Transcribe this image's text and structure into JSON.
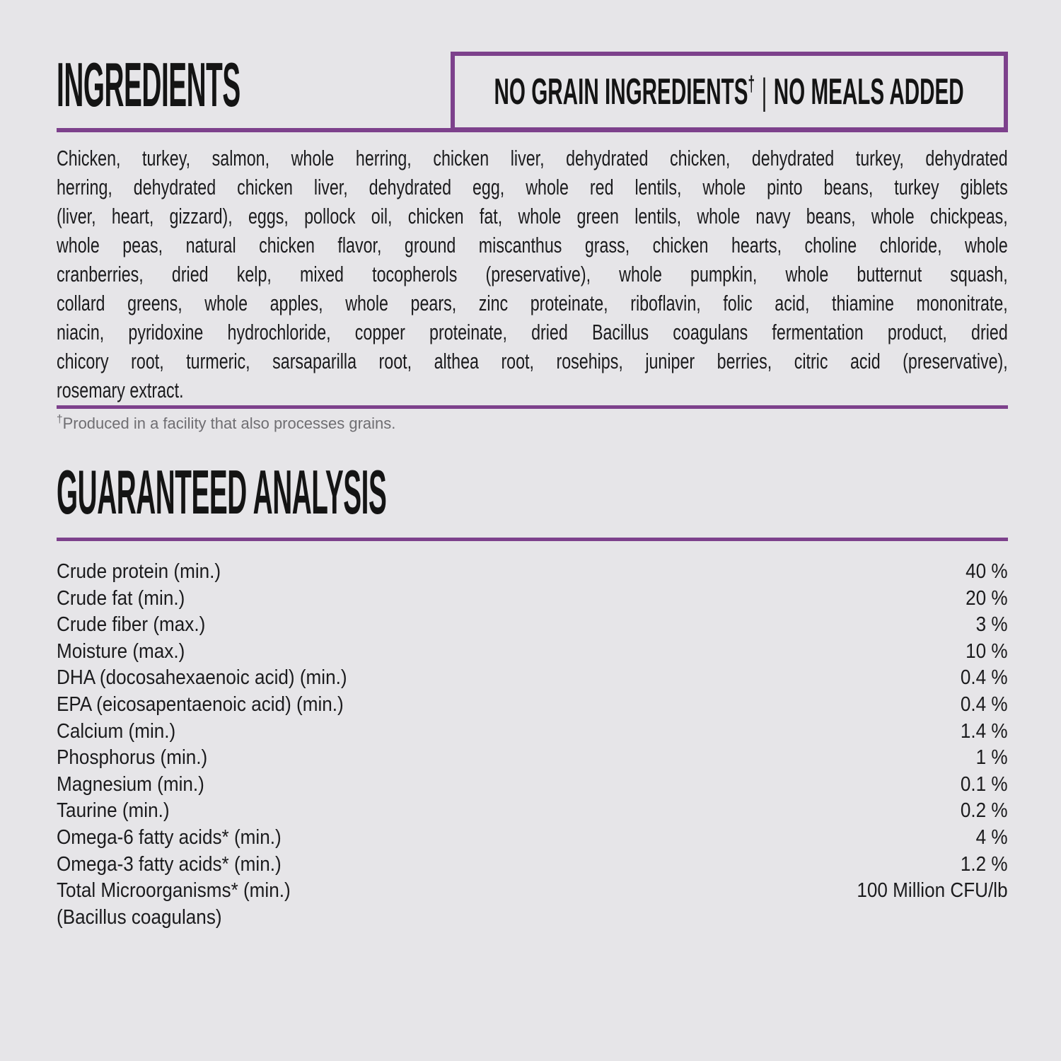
{
  "page": {
    "background_color": "#e6e5e8",
    "accent_color": "#7d418c",
    "text_color": "#1b1b1d",
    "footnote_color": "#6f6e72"
  },
  "ingredients_section": {
    "title": "INGREDIENTS",
    "badge": {
      "left": "NO GRAIN INGREDIENTS",
      "dagger": "†",
      "separator": "|",
      "right": "NO MEALS ADDED"
    },
    "lines": [
      "Chicken, turkey, salmon, whole herring, chicken liver, dehydrated chicken, dehydrated turkey, dehydrated",
      "herring, dehydrated chicken liver, dehydrated egg, whole red lentils, whole pinto beans, turkey giblets",
      "(liver, heart, gizzard), eggs, pollock oil, chicken fat, whole green lentils, whole navy beans, whole chickpeas,",
      "whole peas, natural chicken flavor, ground miscanthus grass, chicken hearts, choline chloride, whole",
      "cranberries, dried kelp, mixed tocopherols (preservative), whole pumpkin, whole butternut squash,",
      "collard greens, whole apples, whole pears, zinc proteinate, riboflavin, folic acid, thiamine mononitrate,",
      "niacin, pyridoxine hydrochloride, copper proteinate, dried Bacillus coagulans fermentation product, dried",
      "chicory root, turmeric, sarsaparilla root, althea root, rosehips, juniper berries, citric acid (preservative),",
      "rosemary extract."
    ],
    "footnote_dagger": "†",
    "footnote": "Produced in a facility that also processes grains."
  },
  "analysis_section": {
    "title": "GUARANTEED ANALYSIS",
    "rows": [
      {
        "label": "Crude protein (min.)",
        "value": "40 %"
      },
      {
        "label": "Crude fat (min.)",
        "value": "20 %"
      },
      {
        "label": "Crude fiber (max.)",
        "value": "3 %"
      },
      {
        "label": "Moisture (max.)",
        "value": "10 %"
      },
      {
        "label": "DHA (docosahexaenoic acid) (min.)",
        "value": "0.4 %"
      },
      {
        "label": "EPA (eicosapentaenoic acid) (min.)",
        "value": "0.4 %"
      },
      {
        "label": "Calcium (min.)",
        "value": "1.4 %"
      },
      {
        "label": "Phosphorus (min.)",
        "value": "1 %"
      },
      {
        "label": "Magnesium (min.)",
        "value": "0.1 %"
      },
      {
        "label": "Taurine (min.)",
        "value": "0.2 %"
      },
      {
        "label": "Omega-6 fatty acids* (min.)",
        "value": "4 %"
      },
      {
        "label": "Omega-3 fatty acids* (min.)",
        "value": "1.2 %"
      },
      {
        "label": "Total Microorganisms* (min.)",
        "value": "100 Million CFU/lb"
      },
      {
        "label": "(Bacillus coagulans)",
        "value": ""
      }
    ]
  }
}
